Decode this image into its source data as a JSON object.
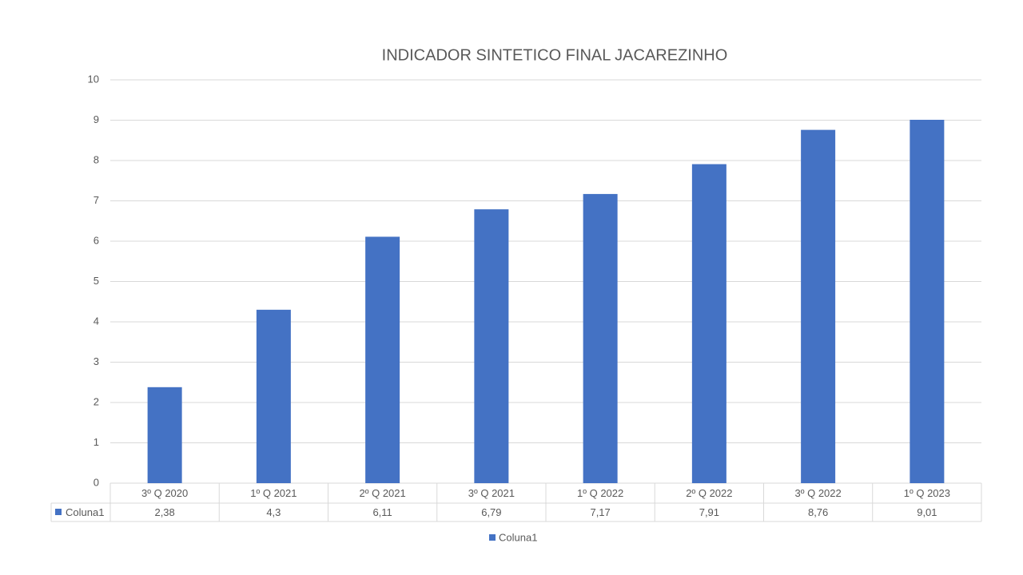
{
  "chart_data": {
    "type": "bar",
    "title": "INDICADOR SINTETICO FINAL JACAREZINHO",
    "categories": [
      "3º Q 2020",
      "1º Q 2021",
      "2º Q 2021",
      "3º Q 2021",
      "1º Q 2022",
      "2º Q 2022",
      "3º Q 2022",
      "1º Q 2023"
    ],
    "series": [
      {
        "name": "Coluna1",
        "color": "#4472c4",
        "values": [
          2.38,
          4.3,
          6.11,
          6.79,
          7.17,
          7.91,
          8.76,
          9.01
        ],
        "value_labels": [
          "2,38",
          "4,3",
          "6,11",
          "6,79",
          "7,17",
          "7,91",
          "8,76",
          "9,01"
        ]
      }
    ],
    "ylim": [
      0,
      10
    ],
    "yticks": [
      0,
      1,
      2,
      3,
      4,
      5,
      6,
      7,
      8,
      9,
      10
    ],
    "grid": true,
    "legend": "bottom"
  }
}
